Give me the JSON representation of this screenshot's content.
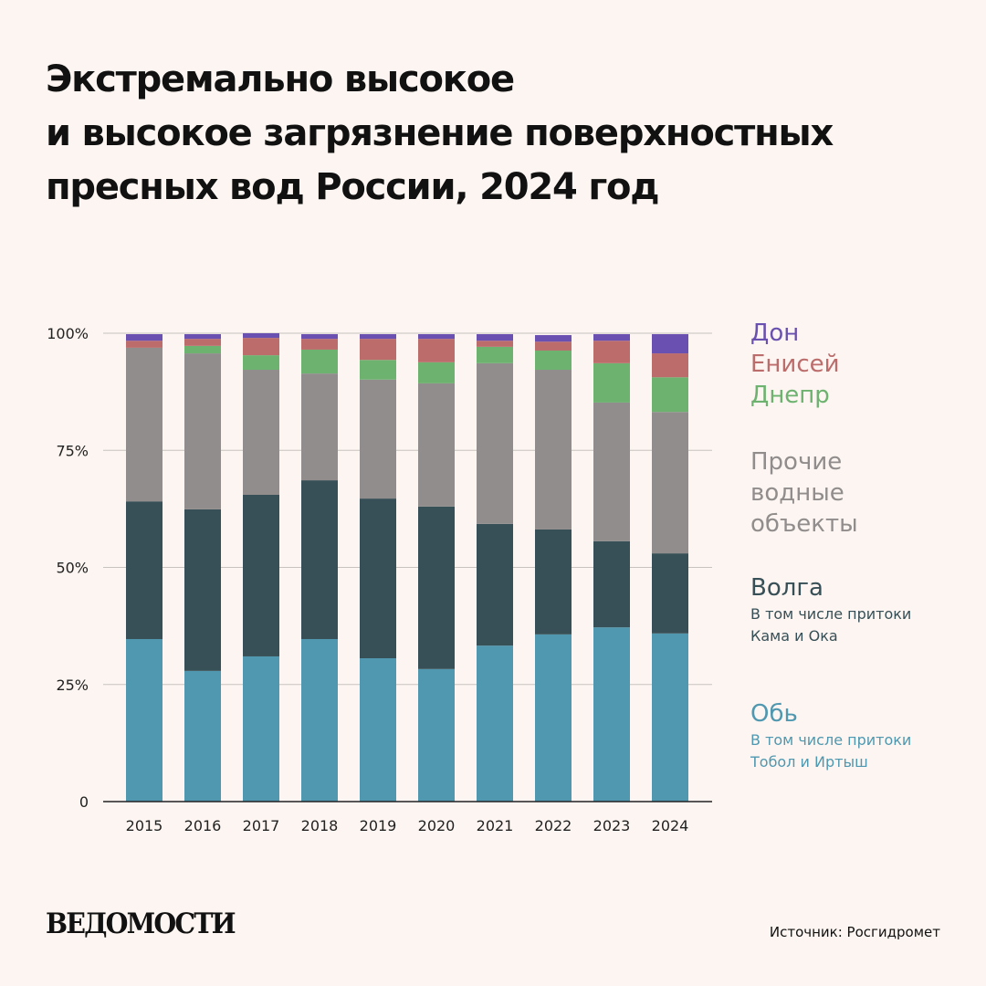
{
  "title_lines": [
    "Экстремально высокое",
    "и высокое загрязнение поверхностных",
    "пресных вод России, 2024 год"
  ],
  "source": "Источник: Росгидромет",
  "logo": "ВЕДОМОСТИ",
  "legend": {
    "don": "Дон",
    "yenisei": "Енисей",
    "dnepr": "Днепр",
    "other": [
      "Прочие",
      "водные",
      "объекты"
    ],
    "volga": "Волга",
    "volga_note": [
      "В том числе притоки",
      "Кама и Ока"
    ],
    "ob": "Обь",
    "ob_note": [
      "В том числе притоки",
      "Тобол и Иртыш"
    ]
  },
  "chart_data": {
    "type": "bar",
    "stacked": true,
    "categories": [
      "2015",
      "2016",
      "2017",
      "2018",
      "2019",
      "2020",
      "2021",
      "2022",
      "2023",
      "2024"
    ],
    "ylim": [
      0,
      100
    ],
    "yticks": [
      0,
      25,
      50,
      75,
      100
    ],
    "ytick_labels": [
      "0",
      "25%",
      "50%",
      "75%",
      "100%"
    ],
    "grid": true,
    "legend_position": "right",
    "series": [
      {
        "name": "Обь",
        "color": "#4f98b0",
        "values": [
          34.7,
          27.9,
          31.0,
          34.7,
          30.6,
          28.3,
          33.3,
          35.7,
          37.2,
          35.9
        ]
      },
      {
        "name": "Волга",
        "color": "#374f56",
        "values": [
          29.4,
          34.5,
          34.5,
          33.9,
          34.1,
          34.7,
          26.0,
          22.4,
          18.4,
          17.1
        ]
      },
      {
        "name": "Прочие водные объекты",
        "color": "#918d8d",
        "values": [
          32.8,
          33.3,
          26.7,
          22.8,
          25.4,
          26.3,
          34.3,
          34.1,
          29.6,
          30.2
        ]
      },
      {
        "name": "Днепр",
        "color": "#6db26f",
        "values": [
          0.0,
          1.6,
          3.1,
          5.1,
          4.2,
          4.5,
          3.5,
          4.1,
          8.4,
          7.4
        ]
      },
      {
        "name": "Енисей",
        "color": "#bb6c6b",
        "values": [
          1.5,
          1.5,
          3.7,
          2.3,
          4.5,
          5.0,
          1.3,
          1.9,
          4.8,
          5.1
        ]
      },
      {
        "name": "Дон",
        "color": "#6a50b0",
        "values": [
          1.4,
          1.0,
          1.0,
          1.0,
          1.0,
          1.0,
          1.4,
          1.4,
          1.4,
          4.1
        ]
      }
    ]
  }
}
